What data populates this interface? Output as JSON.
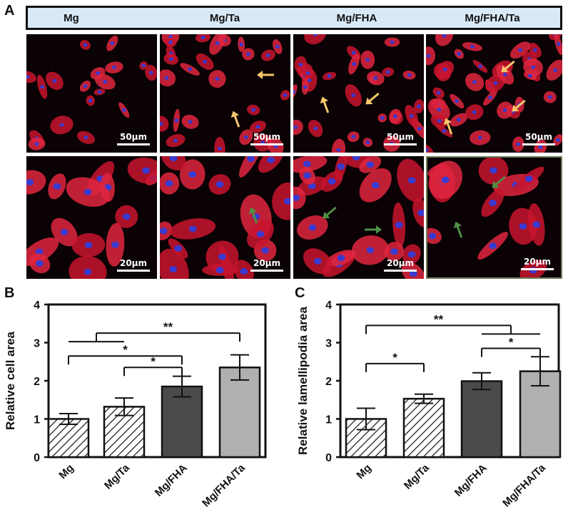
{
  "panel_letters": {
    "a": "A",
    "b": "B",
    "c": "C"
  },
  "groups": [
    "Mg",
    "Mg/Ta",
    "Mg/FHA",
    "Mg/FHA/Ta"
  ],
  "micrographs": {
    "top_scale": "50μm",
    "bottom_scale": "20μm",
    "arrow_colors": {
      "top": "#f5c66b",
      "bottom": "#4f8f45"
    }
  },
  "chart_data": [
    {
      "type": "bar",
      "panel": "B",
      "categories": [
        "Mg",
        "Mg/Ta",
        "Mg/FHA",
        "Mg/FHA/Ta"
      ],
      "values": [
        1.0,
        1.32,
        1.85,
        2.35
      ],
      "errors": [
        0.14,
        0.23,
        0.27,
        0.33
      ],
      "title": "",
      "xlabel": "",
      "ylabel": "Relative  cell area",
      "ylim": [
        0,
        4
      ],
      "yticks": [
        "0",
        "1",
        "2",
        "3",
        "4"
      ],
      "grid": false,
      "bar_styles": [
        "hatch",
        "hatch",
        "#4a4a4a",
        "#b0b0b0"
      ],
      "significance": [
        {
          "label": "**",
          "from": [
            0,
            1
          ],
          "to": 3,
          "y": 3.25
        },
        {
          "label": "*",
          "from": [
            0
          ],
          "to": 2,
          "y": 2.65
        },
        {
          "label": "*",
          "from": [
            1
          ],
          "to": 2,
          "y": 2.35
        }
      ]
    },
    {
      "type": "bar",
      "panel": "C",
      "categories": [
        "Mg",
        "Mg/Ta",
        "Mg/FHA",
        "Mg/FHA/Ta"
      ],
      "values": [
        1.0,
        1.53,
        1.99,
        2.25
      ],
      "errors": [
        0.28,
        0.12,
        0.22,
        0.38
      ],
      "title": "",
      "xlabel": "",
      "ylabel": "Relative lamellipodia area",
      "ylim": [
        0,
        4
      ],
      "yticks": [
        "0",
        "1",
        "2",
        "3",
        "4"
      ],
      "grid": false,
      "bar_styles": [
        "hatch",
        "hatch",
        "#4a4a4a",
        "#b0b0b0"
      ],
      "significance": [
        {
          "label": "**",
          "from": [
            0
          ],
          "to": [
            2,
            3
          ],
          "y": 3.45
        },
        {
          "label": "*",
          "from": [
            2
          ],
          "to": 3,
          "y": 2.85
        },
        {
          "label": "*",
          "from": [
            0
          ],
          "to": 1,
          "y": 2.45
        }
      ]
    }
  ]
}
